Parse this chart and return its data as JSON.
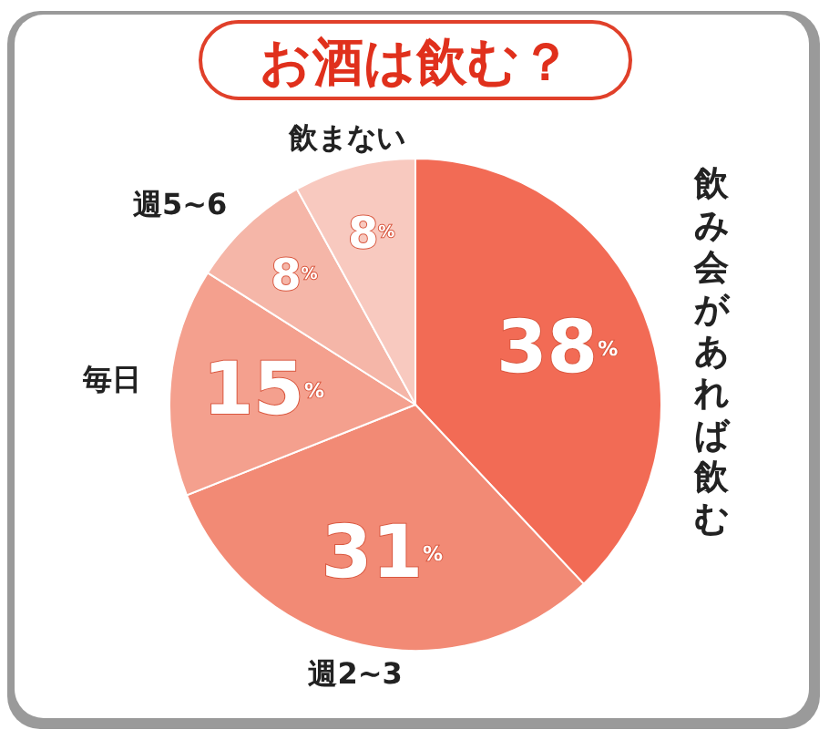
{
  "chart_data": {
    "type": "pie",
    "title": "お酒は飲む？",
    "categories": [
      "飲み会があれば飲む",
      "週2~3",
      "毎日",
      "週5~6",
      "飲まない"
    ],
    "values": [
      38,
      31,
      15,
      8,
      8
    ],
    "colors": [
      "#f26b55",
      "#f28a75",
      "#f4a08e",
      "#f5b6a8",
      "#f8c9bf"
    ],
    "value_labels": [
      "38%",
      "31%",
      "15%",
      "8%",
      "8%"
    ]
  }
}
